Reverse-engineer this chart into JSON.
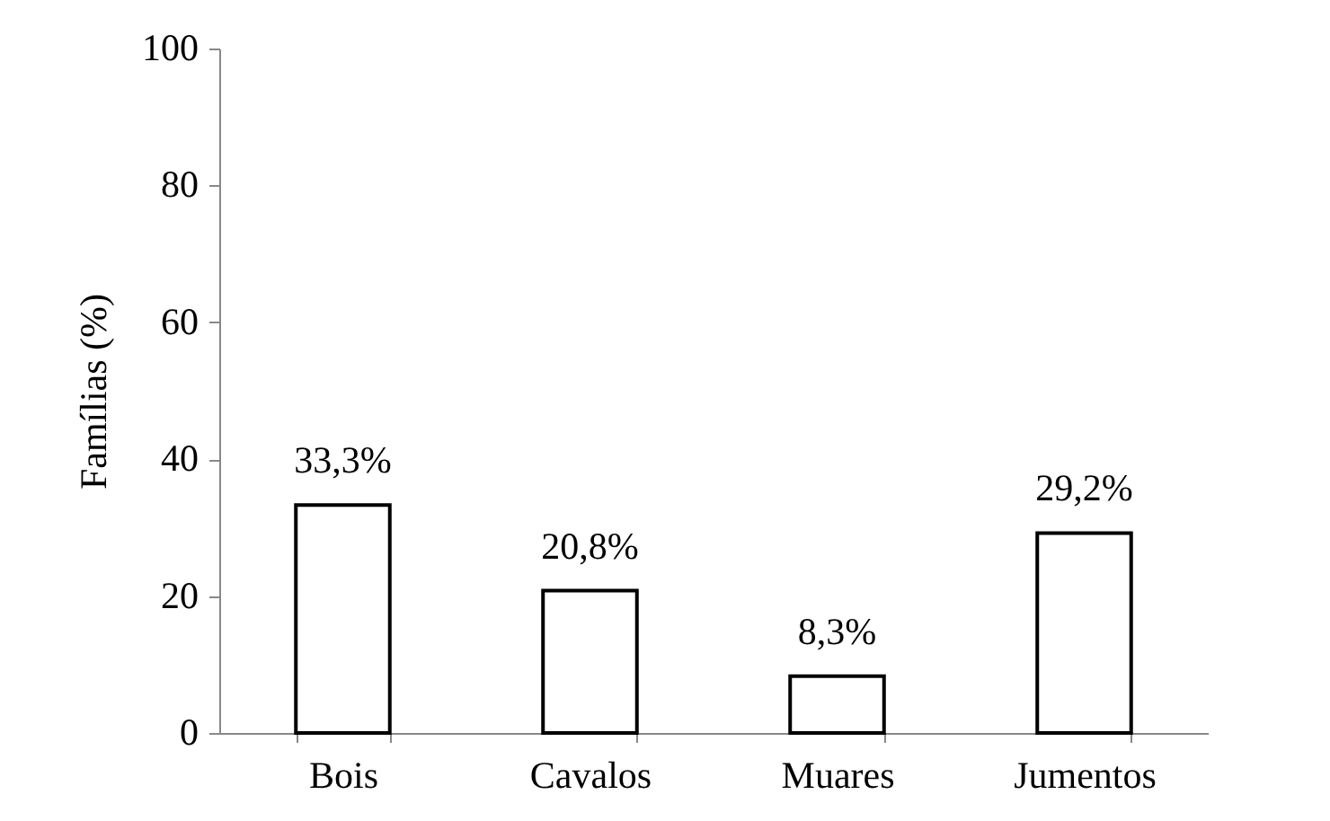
{
  "chart_data": {
    "type": "bar",
    "ylabel": "Famílias (%)",
    "categories": [
      "Bois",
      "Cavalos",
      "Muares",
      "Jumentos"
    ],
    "values": [
      33.3,
      20.8,
      8.3,
      29.2
    ],
    "value_labels": [
      "33,3%",
      "20,8%",
      "8,3%",
      "29,2%"
    ],
    "color": "#ffffff",
    "ylim": [
      0,
      100
    ],
    "yticks": [
      0,
      20,
      40,
      60,
      80,
      100
    ],
    "grid": false
  }
}
